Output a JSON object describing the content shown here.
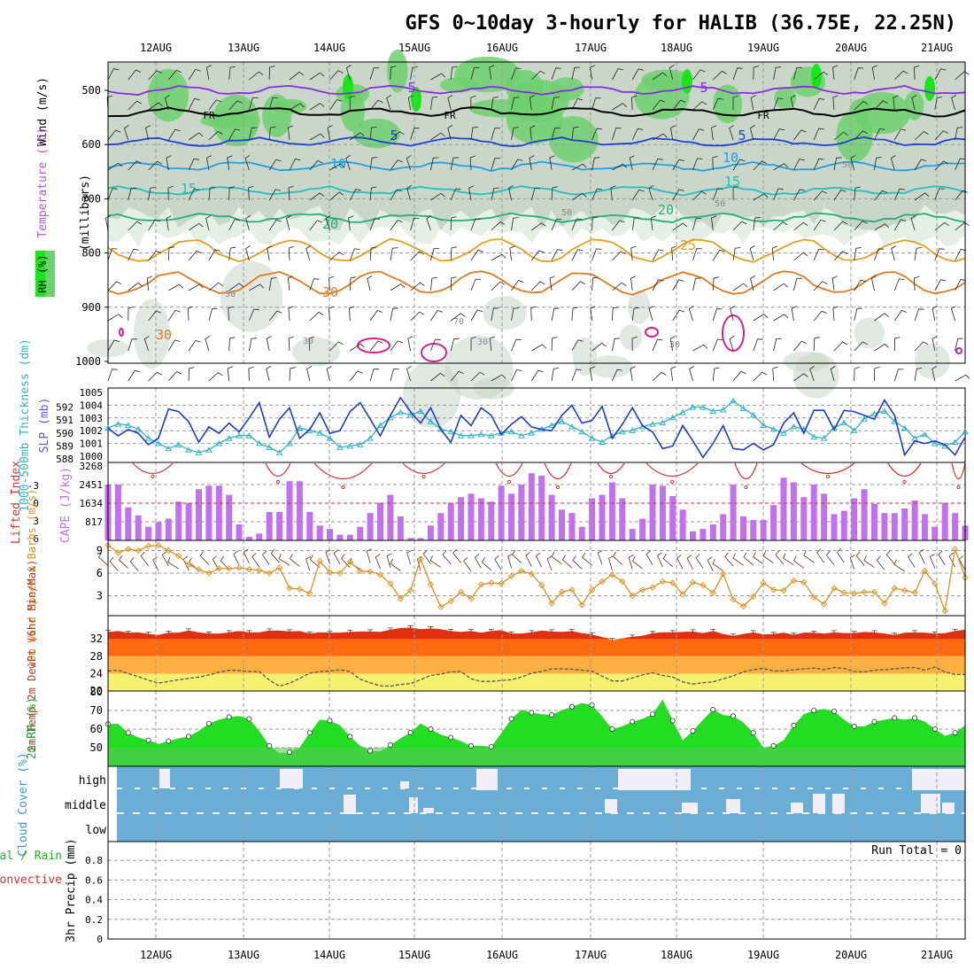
{
  "title": "GFS 0~10day 3-hourly for HALIB (36.75E, 22.25N)",
  "dates": [
    "12AUG",
    "13AUG",
    "14AUG",
    "15AUG",
    "16AUG",
    "17AUG",
    "18AUG",
    "19AUG",
    "20AUG",
    "21AUG"
  ],
  "colors": {
    "frame": "#000000",
    "grid": "#9a9a9a",
    "rh_light": "#e6efe6",
    "rh_mid": "#c9d6c9",
    "rh_green": "#6fd06f",
    "rh_bright": "#19e619",
    "slp": "#1e3ccc",
    "thickness": "#33b4c4",
    "cape": "#c070f0",
    "lifted": "#d83030",
    "wind10": "#e09020",
    "temp_red": "#e03010",
    "temp_orange": "#ff6a10",
    "temp_amber": "#ffb040",
    "temp_yellow": "#f6f070",
    "rh2m_green": "#22dd22",
    "cloud_blue": "#6aaed6",
    "cloud_white": "#f1eef7"
  },
  "chart_data": [
    {
      "type": "heatmap",
      "panel": "upper-air",
      "ylabel_parts": [
        "Wind (m/s)",
        "Temperature (°C)",
        "RH (%)"
      ],
      "yunit": "(millibars)",
      "ylim": [
        1000,
        450
      ],
      "yticks": [
        500,
        600,
        700,
        800,
        900,
        1000
      ],
      "isotherms": [
        {
          "label": "5",
          "pressure": 500,
          "color": "#8a2be2"
        },
        {
          "label": "FR",
          "pressure": 540,
          "color": "#000000"
        },
        {
          "label": "5",
          "pressure": 595,
          "color": "#2040d0"
        },
        {
          "label": "10",
          "pressure": 640,
          "color": "#1ea0e6"
        },
        {
          "label": "15",
          "pressure": 685,
          "color": "#20c0c0"
        },
        {
          "label": "20",
          "pressure": 735,
          "color": "#20b080"
        },
        {
          "label": "25",
          "pressure": 795,
          "color": "#e0a020"
        },
        {
          "label": "30",
          "pressure": 855,
          "color": "#e07a20"
        }
      ],
      "rh_contour_labels": [
        "30",
        "50",
        "70"
      ]
    },
    {
      "type": "line",
      "panel": "slp-thickness",
      "ylabel_left": "1000-500mb Thickness (dm)",
      "ylabel_right": "SLP (mb)",
      "slp_ticks": [
        1000,
        1001,
        1002,
        1003,
        1004,
        1005
      ],
      "thk_ticks": [
        588,
        589,
        590,
        591,
        592
      ],
      "series": [
        {
          "name": "SLP (mb)",
          "values": [
            1002.2,
            1001.6,
            1002.1,
            1001.8,
            1000.9,
            1001.4,
            1003.7,
            1003.5,
            1002.7,
            1001.1,
            1002.3,
            1001.8,
            1002.6,
            1001.9,
            1003.0,
            1004.2,
            1001.5,
            1002.9,
            1003.8,
            1001.4,
            1002.1,
            1003.4,
            1001.8,
            1002.0,
            1003.5,
            1004.2,
            1002.9,
            1001.6,
            1003.2,
            1004.6,
            1003.5,
            1002.6,
            1003.8,
            1002.1,
            1001.1,
            1003.2,
            1002.4,
            1003.8,
            1003.2,
            1001.7,
            1002.5,
            1003.1,
            1002.3,
            1002.1,
            1002.0,
            1003.2,
            1004.0,
            1002.6,
            1002.8,
            1003.9,
            1001.4,
            1002.5,
            1003.8,
            1002.4,
            1001.9,
            1000.6,
            1000.8,
            1002.4,
            1001.2,
            999.9,
            1001.0,
            1002.4,
            1000.6,
            1000.5,
            1001.0,
            1000.5,
            1000.9,
            1002.6,
            1003.4,
            1001.8,
            1003.6,
            1003.6,
            1002.1,
            1003.6,
            1003.5,
            1003.2,
            1002.9,
            1004.4,
            1003.2,
            1000.1,
            1001.2,
            1001.0,
            1001.2,
            1000.9,
            1000.1,
            1001.5
          ]
        },
        {
          "name": "Thickness (dm)",
          "values": [
            590.4,
            590.7,
            590.6,
            590.3,
            589.6,
            589.2,
            588.8,
            589.1,
            588.7,
            588.5,
            588.7,
            589.2,
            589.6,
            589.8,
            589.8,
            589.2,
            588.9,
            588.5,
            589.2,
            590.4,
            590.2,
            590.0,
            589.6,
            588.9,
            589.0,
            589.1,
            589.6,
            590.6,
            591.2,
            591.6,
            591.4,
            591.7,
            590.9,
            590.3,
            590.1,
            589.8,
            589.8,
            589.9,
            589.8,
            590.0,
            590.1,
            589.8,
            590.0,
            590.3,
            590.6,
            590.9,
            590.5,
            590.1,
            589.6,
            589.3,
            589.8,
            590.1,
            590.2,
            590.5,
            590.7,
            590.8,
            591.2,
            591.6,
            592.0,
            592.0,
            591.7,
            591.8,
            592.5,
            591.9,
            591.4,
            590.6,
            590.3,
            590.0,
            590.5,
            590.3,
            589.7,
            589.6,
            590.4,
            590.8,
            590.2,
            591.1,
            591.5,
            591.7,
            590.9,
            590.4,
            589.6,
            589.9,
            589.2,
            589.0,
            589.3,
            590.1
          ]
        }
      ]
    },
    {
      "type": "bar",
      "panel": "cape-lifted-index",
      "ylabel_left": "Lifted Index",
      "ylabel_right": "CAPE (J/kg)",
      "cape_ticks": [
        817,
        1634,
        2451,
        3268
      ],
      "li_ticks": [
        -3,
        0,
        3,
        6
      ],
      "li_tick_labels": [
        "-3",
        "0",
        "3",
        "6"
      ],
      "series": [
        {
          "name": "CAPE",
          "values": [
            2450,
            2450,
            1450,
            1100,
            600,
            800,
            950,
            1700,
            1650,
            2250,
            2400,
            2400,
            2000,
            700,
            150,
            300,
            1250,
            1250,
            2600,
            2600,
            1250,
            650,
            500,
            250,
            250,
            600,
            1200,
            1650,
            2000,
            1050,
            100,
            100,
            650,
            1200,
            1650,
            1900,
            2050,
            1850,
            1700,
            2400,
            2050,
            2450,
            2950,
            2850,
            2000,
            1350,
            1200,
            600,
            1850,
            2000,
            2550,
            1850,
            500,
            950,
            2450,
            2400,
            1950,
            1350,
            400,
            500,
            700,
            1150,
            2450,
            1050,
            900,
            900,
            1550,
            2750,
            2550,
            1900,
            2450,
            2050,
            1150,
            1300,
            1850,
            2250,
            1600,
            1200,
            1200,
            1400,
            1750,
            1150,
            600,
            1650,
            1200,
            650
          ]
        }
      ],
      "lifted_index_negative_segments": 14
    },
    {
      "type": "line",
      "panel": "wind10m",
      "ylabel": "10m Wind Speed & Barbs (m/s)",
      "yticks": [
        3,
        6,
        9
      ],
      "ylim": [
        0,
        10.5
      ],
      "series": [
        {
          "name": "10m Wind Speed",
          "values": [
            9.7,
            8.7,
            9.2,
            9.0,
            9.6,
            9.7,
            9.0,
            8.3,
            7.1,
            6.5,
            6.0,
            6.6,
            6.6,
            6.7,
            6.5,
            6.4,
            6.0,
            6.7,
            4.0,
            3.9,
            3.3,
            7.6,
            6.1,
            6.0,
            7.5,
            6.3,
            6.2,
            5.8,
            4.6,
            2.6,
            3.7,
            7.9,
            4.5,
            1.5,
            2.3,
            3.5,
            2.6,
            4.5,
            4.7,
            4.6,
            5.6,
            6.3,
            5.9,
            4.4,
            2.0,
            3.5,
            3.8,
            1.8,
            3.8,
            4.9,
            5.8,
            4.9,
            3.0,
            3.8,
            4.1,
            4.9,
            4.7,
            3.2,
            4.8,
            4.4,
            3.4,
            5.9,
            2.5,
            1.6,
            2.9,
            4.7,
            3.8,
            3.7,
            5.0,
            4.8,
            2.8,
            1.9,
            4.0,
            3.4,
            3.3,
            3.5,
            3.5,
            2.0,
            4.0,
            3.7,
            3.4,
            6.3,
            4.6,
            1.0,
            9.2,
            5.4
          ]
        }
      ]
    },
    {
      "type": "area",
      "panel": "temp2m",
      "ylabel": "2m Temp 2m DewPt (6hr Min/Max)",
      "yticks": [
        20,
        24,
        28,
        32
      ],
      "ylim": [
        20,
        35
      ],
      "series": [
        {
          "name": "2m Temp",
          "values": [
            33.6,
            33.8,
            33.4,
            33.5,
            33.1,
            32.9,
            33.4,
            33.4,
            33.9,
            33.5,
            33.2,
            33.2,
            33.5,
            33.8,
            33.5,
            33.5,
            33.9,
            33.9,
            33.7,
            33.8,
            33.2,
            33.5,
            33.4,
            33.4,
            33.6,
            33.7,
            33.7,
            33.6,
            34.1,
            34.5,
            34.6,
            34.2,
            34.4,
            34.2,
            33.8,
            33.6,
            33.8,
            33.4,
            33.8,
            34.0,
            33.2,
            33.2,
            33.5,
            33.9,
            33.7,
            33.6,
            33.8,
            33.3,
            33.0,
            32.4,
            31.7,
            32.1,
            32.5,
            32.7,
            33.3,
            33.5,
            33.5,
            33.6,
            33.7,
            33.3,
            33.8,
            33.1,
            32.7,
            33.1,
            33.5,
            33.0,
            33.1,
            33.4,
            32.9,
            33.4,
            33.4,
            33.2,
            33.5,
            33.3,
            33.3,
            33.6,
            33.5,
            33.2,
            32.9,
            33.4,
            33.5,
            33.4,
            33.2,
            33.3,
            33.8,
            34.1
          ]
        },
        {
          "name": "2m DewPt",
          "values": [
            24.6,
            24.8,
            24.0,
            23.3,
            22.5,
            21.8,
            22.2,
            22.6,
            22.9,
            23.2,
            23.7,
            24.3,
            24.8,
            24.7,
            24.5,
            24.5,
            22.5,
            21.1,
            21.8,
            22.9,
            24.1,
            24.5,
            24.6,
            24.9,
            24.5,
            22.7,
            21.9,
            21.2,
            21.1,
            21.5,
            21.7,
            22.6,
            23.6,
            23.9,
            24.4,
            24.5,
            22.8,
            22.2,
            22.2,
            22.4,
            22.6,
            23.2,
            24.1,
            24.5,
            25.1,
            25.1,
            25.0,
            24.8,
            24.6,
            23.4,
            22.3,
            22.3,
            23.0,
            23.7,
            24.2,
            23.6,
            23.2,
            22.1,
            21.6,
            21.9,
            22.1,
            22.8,
            23.5,
            24.4,
            24.9,
            25.2,
            24.6,
            24.6,
            24.9,
            25.1,
            25.3,
            24.9,
            25.4,
            25.2,
            24.5,
            24.4,
            24.8,
            24.9,
            25.1,
            25.3,
            25.4,
            24.8,
            25.5,
            24.4,
            23.8,
            23.8
          ]
        }
      ]
    },
    {
      "type": "area",
      "panel": "rh2m",
      "ylabel": "2m RH (%)",
      "yticks": [
        50,
        60,
        70,
        80
      ],
      "ylim": [
        40,
        80
      ],
      "series": [
        {
          "name": "2m RH",
          "values": [
            62.7,
            62.8,
            58.0,
            55.5,
            54.0,
            52.0,
            53.5,
            55.0,
            56.0,
            59.0,
            63.0,
            65.0,
            66.5,
            67.0,
            65.5,
            59.0,
            51.0,
            47.0,
            47.6,
            50.0,
            58.0,
            65.0,
            64.5,
            62.0,
            56.0,
            51.0,
            48.3,
            48.0,
            51.5,
            55.0,
            58.2,
            63.0,
            60.0,
            57.0,
            55.5,
            53.5,
            51.0,
            51.0,
            50.5,
            57.8,
            65.5,
            70.3,
            68.8,
            68.0,
            67.6,
            70.1,
            72.0,
            73.9,
            73.0,
            66.8,
            60.0,
            61.5,
            64.0,
            65.5,
            68.0,
            75.9,
            64.5,
            54.0,
            59.0,
            65.0,
            70.5,
            67.5,
            67.0,
            63.5,
            58.0,
            50.0,
            51.0,
            54.0,
            62.0,
            68.0,
            70.0,
            70.8,
            69.5,
            65.0,
            61.5,
            61.4,
            64.0,
            65.0,
            66.0,
            65.0,
            66.0,
            64.0,
            60.0,
            56.4,
            58.0,
            62.0
          ]
        }
      ]
    },
    {
      "type": "heatmap",
      "panel": "cloud-cover",
      "ylabel": "Cloud Cover (%)",
      "levels": [
        "high",
        "middle",
        "low"
      ]
    },
    {
      "type": "bar",
      "panel": "precip",
      "ylabel_parts": [
        "Total / Rain",
        "Convective",
        "3hr Precip (mm)"
      ],
      "yticks": [
        0,
        0.2,
        0.4,
        0.6,
        0.8
      ],
      "ylim": [
        0,
        0.9
      ],
      "series": [],
      "run_total_label": "Run Total = 0"
    }
  ]
}
